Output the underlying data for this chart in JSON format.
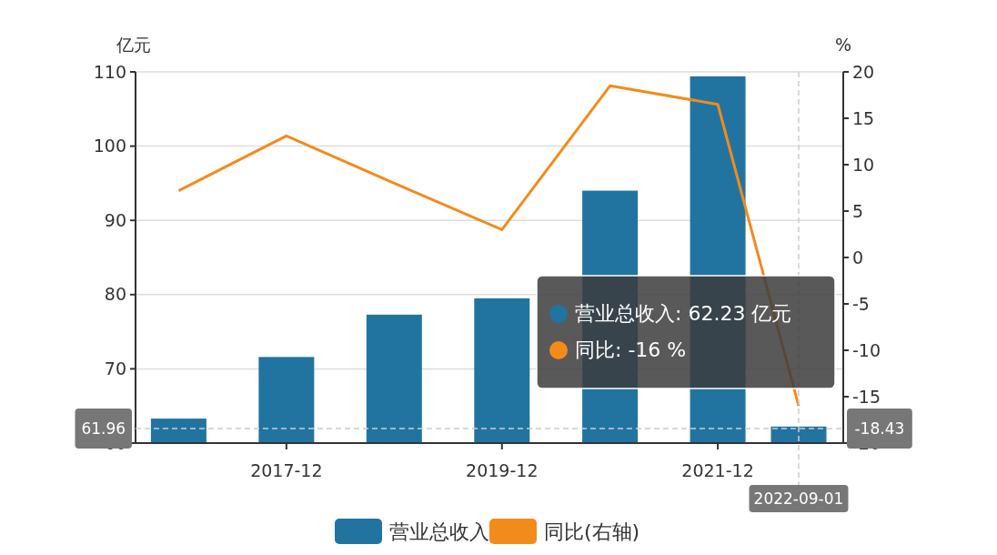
{
  "chart_data": {
    "type": "bar",
    "x": [
      "2016-12-01",
      "2017-12-01",
      "2018-12-01",
      "2019-12-01",
      "2020-12-01",
      "2021-12-01",
      "2022-09-01"
    ],
    "series": [
      {
        "name": "营业总收入",
        "color": "#2274a0",
        "values": [
          63.3,
          71.6,
          77.3,
          79.5,
          94.0,
          109.4,
          62.23
        ]
      },
      {
        "name": "同比(右轴)",
        "type": "line",
        "axis": "y2",
        "color": "#f38b1c",
        "values": [
          7.2,
          13.1,
          8.0,
          3.0,
          18.5,
          16.5,
          -16
        ]
      }
    ],
    "xlim": [
      "2016-07-08",
      "2023-01-30"
    ],
    "xticks": [
      "2017-12",
      "2019-12",
      "2021-12"
    ],
    "ylim": [
      60,
      110
    ],
    "yticks": [
      60,
      70,
      80,
      90,
      100,
      110
    ],
    "y2lim": [
      -20,
      20
    ],
    "y2ticks": [
      -20,
      -15,
      -10,
      -5,
      0,
      5,
      10,
      15,
      20
    ],
    "ylabel": "亿元",
    "y2label": "%",
    "ref_lines": [
      {
        "axis": "y",
        "value": 61.96,
        "label": "61.96",
        "color": "#cccccc",
        "line_style": "dashed"
      },
      {
        "axis": "x",
        "value": "2022-09-01",
        "label": "2022-09-01",
        "color": "#cccccc",
        "line_style": "dashed"
      }
    ],
    "annotations": [
      "营业总收入: 62.23 亿元",
      "同比: -16 %",
      "-18.43"
    ],
    "grid": "y",
    "legend": "bottom"
  }
}
